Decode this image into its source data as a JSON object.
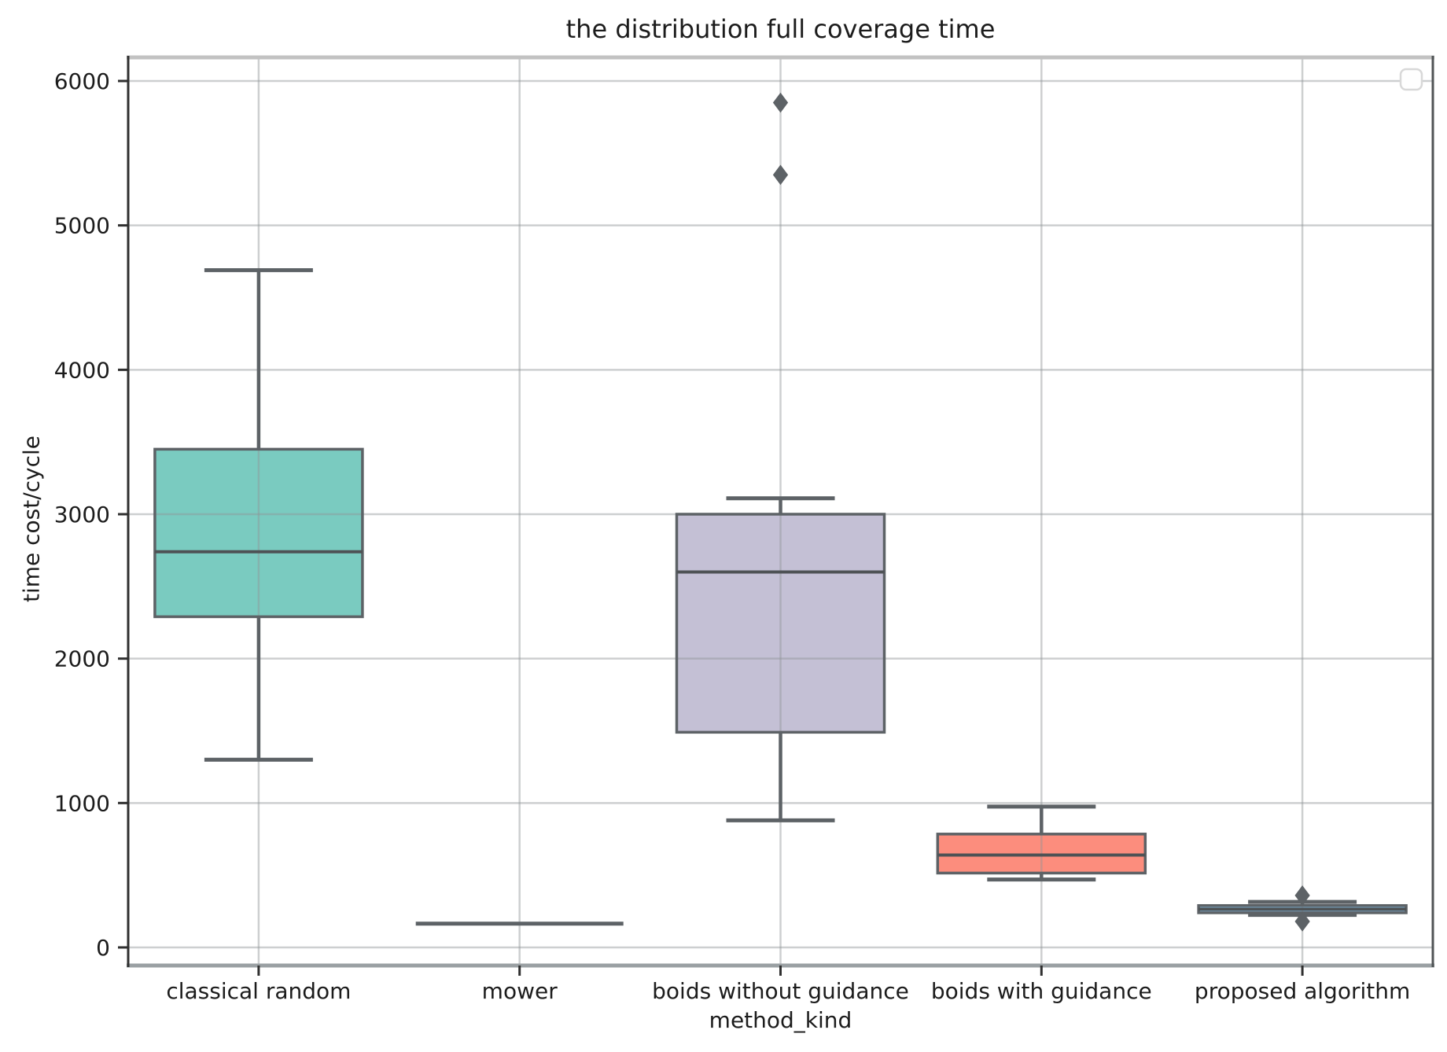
{
  "chart_data": {
    "type": "box",
    "title": "the distribution full coverage time",
    "xlabel": "method_kind",
    "ylabel": "time cost/cycle",
    "ylim": [
      -130,
      6160
    ],
    "yticks": [
      0,
      1000,
      2000,
      3000,
      4000,
      5000,
      6000
    ],
    "grid": true,
    "legend": {
      "present": true,
      "entries": [],
      "position": "upper-right",
      "note": "empty legend frame"
    },
    "categories": [
      "classical random",
      "mower",
      "boids without guidance",
      "boids with guidance",
      "proposed algorithm"
    ],
    "boxes": [
      {
        "category": "classical random",
        "whisker_low": 1300,
        "q1": 2290,
        "median": 2740,
        "q3": 3450,
        "whisker_high": 4690,
        "outliers": [],
        "fill": "#7acbc0"
      },
      {
        "category": "mower",
        "whisker_low": 165,
        "q1": 165,
        "median": 165,
        "q3": 165,
        "whisker_high": 165,
        "outliers": [],
        "fill": "#fdfcb9"
      },
      {
        "category": "boids without guidance",
        "whisker_low": 880,
        "q1": 1490,
        "median": 2600,
        "q3": 3000,
        "whisker_high": 3110,
        "outliers": [
          5350,
          5850
        ],
        "fill": "#c4c0d5"
      },
      {
        "category": "boids with guidance",
        "whisker_low": 470,
        "q1": 515,
        "median": 640,
        "q3": 785,
        "whisker_high": 975,
        "outliers": [],
        "fill": "#fc8d7d"
      },
      {
        "category": "proposed algorithm",
        "whisker_low": 225,
        "q1": 240,
        "median": 265,
        "q3": 290,
        "whisker_high": 315,
        "outliers": [
          180,
          360
        ],
        "fill": "#80b1d3"
      }
    ]
  },
  "styles": {
    "line_color": "#5d6266",
    "grid_color_rgba": "rgba(145,148,150,0.45)",
    "tick_color": "#2f2f2f",
    "text_color": "#1c1c1c",
    "spine_top": "#c2c2c2",
    "spine_bottom": "#9aa0a3",
    "spine_left": "#2f2f2f",
    "spine_right": "#505456",
    "legend_border": "#d8d8d8",
    "legend_fill": "#fefefe",
    "background": "#ffffff"
  }
}
